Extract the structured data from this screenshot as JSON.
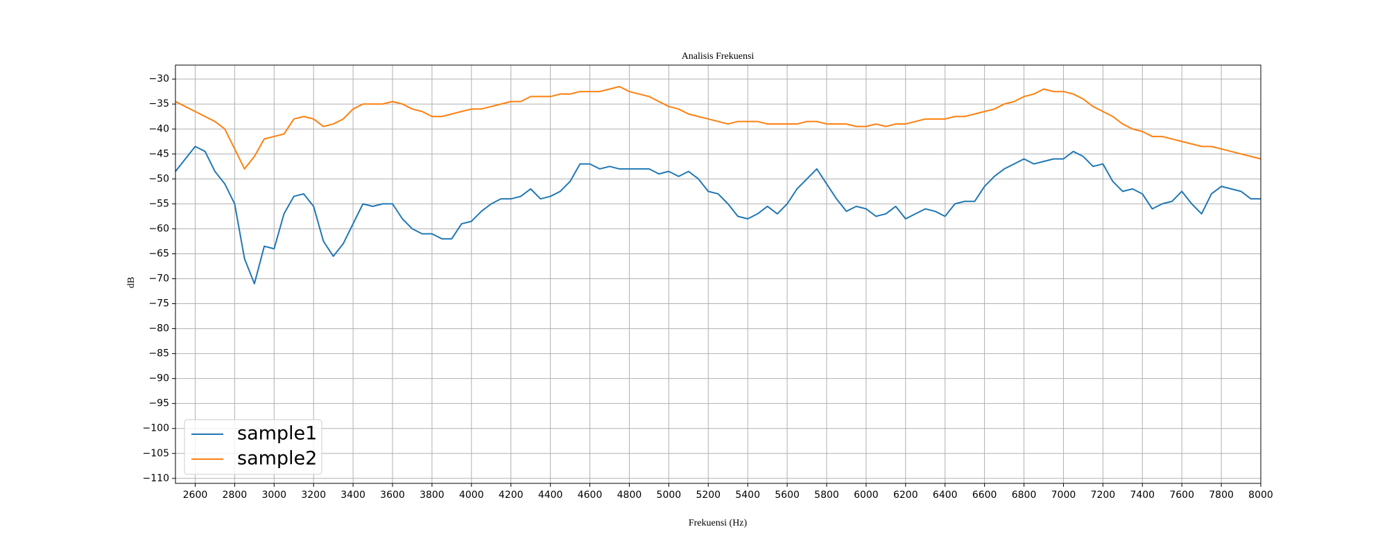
{
  "chart_data": {
    "type": "line",
    "title": "Analisis Frekuensi",
    "x_label": "Frekuensi (Hz)",
    "y_label": "dB",
    "x": [
      2500,
      2550,
      2600,
      2650,
      2700,
      2750,
      2800,
      2850,
      2900,
      2950,
      3000,
      3050,
      3100,
      3150,
      3200,
      3250,
      3300,
      3350,
      3400,
      3450,
      3500,
      3550,
      3600,
      3650,
      3700,
      3750,
      3800,
      3850,
      3900,
      3950,
      4000,
      4050,
      4100,
      4150,
      4200,
      4250,
      4300,
      4350,
      4400,
      4450,
      4500,
      4550,
      4600,
      4650,
      4700,
      4750,
      4800,
      4850,
      4900,
      4950,
      5000,
      5050,
      5100,
      5150,
      5200,
      5250,
      5300,
      5350,
      5400,
      5450,
      5500,
      5550,
      5600,
      5650,
      5700,
      5750,
      5800,
      5850,
      5900,
      5950,
      6000,
      6050,
      6100,
      6150,
      6200,
      6250,
      6300,
      6350,
      6400,
      6450,
      6500,
      6550,
      6600,
      6650,
      6700,
      6750,
      6800,
      6850,
      6900,
      6950,
      7000,
      7050,
      7100,
      7150,
      7200,
      7250,
      7300,
      7350,
      7400,
      7450,
      7500,
      7550,
      7600,
      7650,
      7700,
      7750,
      7800,
      7850,
      7900,
      7950,
      8000
    ],
    "series": [
      {
        "name": "sample1",
        "color": "#1f77b4",
        "values": [
          -48.5,
          -46,
          -43.5,
          -44.5,
          -48.5,
          -51,
          -55,
          -66,
          -71,
          -63.5,
          -64,
          -57,
          -53.5,
          -53,
          -55.5,
          -62.5,
          -65.5,
          -63,
          -59,
          -55,
          -55.5,
          -55,
          -55,
          -58,
          -60,
          -61,
          -61,
          -62,
          -62,
          -59,
          -58.5,
          -56.5,
          -55,
          -54,
          -54,
          -53.5,
          -52,
          -54,
          -53.5,
          -52.5,
          -50.5,
          -47,
          -47,
          -48,
          -47.5,
          -48,
          -48,
          -48,
          -48,
          -49,
          -48.5,
          -49.5,
          -48.5,
          -50,
          -52.5,
          -53,
          -55,
          -57.5,
          -58,
          -57,
          -55.5,
          -57,
          -55,
          -52,
          -50,
          -48,
          -51,
          -54,
          -56.5,
          -55.5,
          -56,
          -57.5,
          -57,
          -55.5,
          -58,
          -57,
          -56,
          -56.5,
          -57.5,
          -55,
          -54.5,
          -54.5,
          -51.5,
          -49.5,
          -48,
          -47,
          -46,
          -47,
          -46.5,
          -46,
          -46,
          -44.5,
          -45.5,
          -47.5,
          -47,
          -50.5,
          -52.5,
          -52,
          -53,
          -56,
          -55,
          -54.5,
          -52.5,
          -55,
          -57,
          -53,
          -51.5,
          -52,
          -52.5,
          -54,
          -54
        ]
      },
      {
        "name": "sample2",
        "color": "#ff7f0e",
        "values": [
          -34.5,
          -35.5,
          -36.5,
          -37.5,
          -38.5,
          -40,
          -44,
          -48,
          -45.5,
          -42,
          -41.5,
          -41,
          -38,
          -37.5,
          -38,
          -39.5,
          -39,
          -38,
          -36,
          -35,
          -35,
          -35,
          -34.5,
          -35,
          -36,
          -36.5,
          -37.5,
          -37.5,
          -37,
          -36.5,
          -36,
          -36,
          -35.5,
          -35,
          -34.5,
          -34.5,
          -33.5,
          -33.5,
          -33.5,
          -33,
          -33,
          -32.5,
          -32.5,
          -32.5,
          -32,
          -31.5,
          -32.5,
          -33,
          -33.5,
          -34.5,
          -35.5,
          -36,
          -37,
          -37.5,
          -38,
          -38.5,
          -39,
          -38.5,
          -38.5,
          -38.5,
          -39,
          -39,
          -39,
          -39,
          -38.5,
          -38.5,
          -39,
          -39,
          -39,
          -39.5,
          -39.5,
          -39,
          -39.5,
          -39,
          -39,
          -38.5,
          -38,
          -38,
          -38,
          -37.5,
          -37.5,
          -37,
          -36.5,
          -36,
          -35,
          -34.5,
          -33.5,
          -33,
          -32,
          -32.5,
          -32.5,
          -33,
          -34,
          -35.5,
          -36.5,
          -37.5,
          -39,
          -40,
          -40.5,
          -41.5,
          -41.5,
          -42,
          -42.5,
          -43,
          -43.5,
          -43.5,
          -44,
          -44.5,
          -45,
          -45.5,
          -46
        ]
      }
    ],
    "xlim": [
      2500,
      8000
    ],
    "xticks": [
      2600,
      2800,
      3000,
      3200,
      3400,
      3600,
      3800,
      4000,
      4200,
      4400,
      4600,
      4800,
      5000,
      5200,
      5400,
      5600,
      5800,
      6000,
      6200,
      6400,
      6600,
      6800,
      7000,
      7200,
      7400,
      7600,
      7800,
      8000
    ],
    "ylim": [
      -111,
      -27.2
    ],
    "yticks": [
      {
        "value": -30,
        "label": "−30"
      },
      {
        "value": -35,
        "label": "−35"
      },
      {
        "value": -40,
        "label": "−40"
      },
      {
        "value": -45,
        "label": "−45"
      },
      {
        "value": -50,
        "label": "−50"
      },
      {
        "value": -55,
        "label": "−55"
      },
      {
        "value": -60,
        "label": "−60"
      },
      {
        "value": -65,
        "label": "−65"
      },
      {
        "value": -70,
        "label": "−70"
      },
      {
        "value": -75,
        "label": "−75"
      },
      {
        "value": -80,
        "label": "−80"
      },
      {
        "value": -85,
        "label": "−85"
      },
      {
        "value": -90,
        "label": "−90"
      },
      {
        "value": -95,
        "label": "−95"
      },
      {
        "value": -100,
        "label": "−100"
      },
      {
        "value": -105,
        "label": "−105"
      },
      {
        "value": -110,
        "label": "−110"
      }
    ],
    "grid": true,
    "legend": "lower left"
  }
}
